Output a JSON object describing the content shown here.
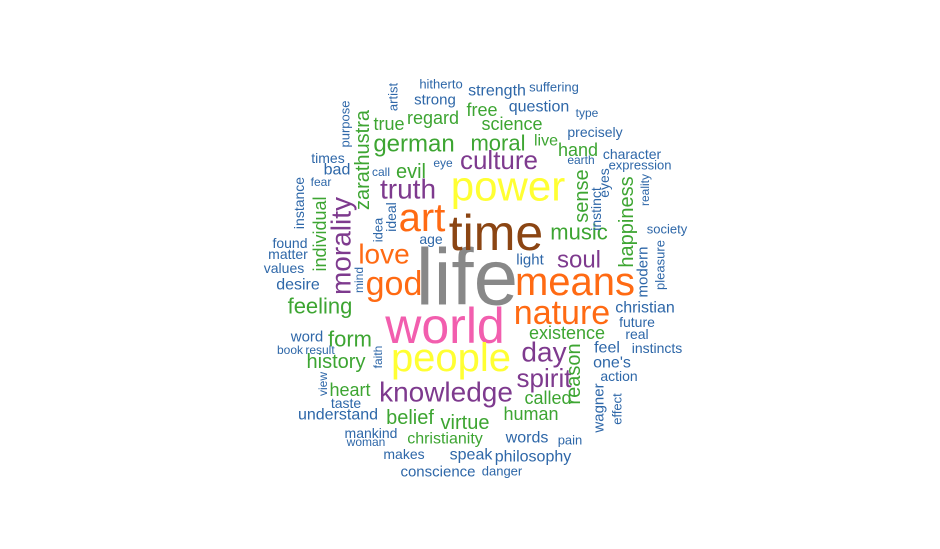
{
  "colors": {
    "gray": "#888888",
    "brown": "#8B4513",
    "yellow": "#FFFF33",
    "pink": "#F25EAE",
    "orange": "#FF6A13",
    "purple": "#7E3A8E",
    "green": "#3DA532",
    "blue": "#2E67A8"
  },
  "words": [
    {
      "text": "life",
      "color": "gray"
    },
    {
      "text": "time",
      "color": "brown"
    },
    {
      "text": "world",
      "color": "pink"
    },
    {
      "text": "power",
      "color": "yellow"
    },
    {
      "text": "people",
      "color": "yellow"
    },
    {
      "text": "means",
      "color": "orange"
    },
    {
      "text": "art",
      "color": "orange"
    },
    {
      "text": "nature",
      "color": "orange"
    },
    {
      "text": "god",
      "color": "orange"
    },
    {
      "text": "love",
      "color": "orange"
    },
    {
      "text": "knowledge",
      "color": "purple"
    },
    {
      "text": "morality",
      "color": "purple"
    },
    {
      "text": "truth",
      "color": "purple"
    },
    {
      "text": "culture",
      "color": "purple"
    },
    {
      "text": "spirit",
      "color": "purple"
    },
    {
      "text": "day",
      "color": "purple"
    },
    {
      "text": "soul",
      "color": "purple"
    },
    {
      "text": "music",
      "color": "green"
    },
    {
      "text": "german",
      "color": "green"
    },
    {
      "text": "moral",
      "color": "green"
    },
    {
      "text": "feeling",
      "color": "green"
    },
    {
      "text": "form",
      "color": "green"
    },
    {
      "text": "history",
      "color": "green"
    },
    {
      "text": "existence",
      "color": "green"
    },
    {
      "text": "zarathustra",
      "color": "green"
    },
    {
      "text": "sense",
      "color": "green"
    },
    {
      "text": "reason",
      "color": "green"
    },
    {
      "text": "happiness",
      "color": "green"
    },
    {
      "text": "evil",
      "color": "green"
    },
    {
      "text": "belief",
      "color": "green"
    },
    {
      "text": "virtue",
      "color": "green"
    },
    {
      "text": "human",
      "color": "green"
    },
    {
      "text": "called",
      "color": "green"
    },
    {
      "text": "heart",
      "color": "green"
    },
    {
      "text": "science",
      "color": "green"
    },
    {
      "text": "regard",
      "color": "green"
    },
    {
      "text": "true",
      "color": "green"
    },
    {
      "text": "free",
      "color": "green"
    },
    {
      "text": "hand",
      "color": "green"
    },
    {
      "text": "individual",
      "color": "green"
    },
    {
      "text": "christianity",
      "color": "green"
    },
    {
      "text": "live",
      "color": "green"
    },
    {
      "text": "strength",
      "color": "blue"
    },
    {
      "text": "strong",
      "color": "blue"
    },
    {
      "text": "question",
      "color": "blue"
    },
    {
      "text": "precisely",
      "color": "blue"
    },
    {
      "text": "suffering",
      "color": "blue"
    },
    {
      "text": "hitherto",
      "color": "blue"
    },
    {
      "text": "artist",
      "color": "blue"
    },
    {
      "text": "purpose",
      "color": "blue"
    },
    {
      "text": "type",
      "color": "blue"
    },
    {
      "text": "times",
      "color": "blue"
    },
    {
      "text": "bad",
      "color": "blue"
    },
    {
      "text": "call",
      "color": "blue"
    },
    {
      "text": "eye",
      "color": "blue"
    },
    {
      "text": "earth",
      "color": "blue"
    },
    {
      "text": "eyes",
      "color": "blue"
    },
    {
      "text": "instinct",
      "color": "blue"
    },
    {
      "text": "character",
      "color": "blue"
    },
    {
      "text": "expression",
      "color": "blue"
    },
    {
      "text": "reality",
      "color": "blue"
    },
    {
      "text": "fear",
      "color": "blue"
    },
    {
      "text": "instance",
      "color": "blue"
    },
    {
      "text": "ideal",
      "color": "blue"
    },
    {
      "text": "idea",
      "color": "blue"
    },
    {
      "text": "age",
      "color": "blue"
    },
    {
      "text": "found",
      "color": "blue"
    },
    {
      "text": "matter",
      "color": "blue"
    },
    {
      "text": "values",
      "color": "blue"
    },
    {
      "text": "mind",
      "color": "blue"
    },
    {
      "text": "desire",
      "color": "blue"
    },
    {
      "text": "light",
      "color": "blue"
    },
    {
      "text": "society",
      "color": "blue"
    },
    {
      "text": "modern",
      "color": "blue"
    },
    {
      "text": "pleasure",
      "color": "blue"
    },
    {
      "text": "christian",
      "color": "blue"
    },
    {
      "text": "future",
      "color": "blue"
    },
    {
      "text": "real",
      "color": "blue"
    },
    {
      "text": "feel",
      "color": "blue"
    },
    {
      "text": "instincts",
      "color": "blue"
    },
    {
      "text": "one's",
      "color": "blue"
    },
    {
      "text": "action",
      "color": "blue"
    },
    {
      "text": "word",
      "color": "blue"
    },
    {
      "text": "book",
      "color": "blue"
    },
    {
      "text": "result",
      "color": "blue"
    },
    {
      "text": "faith",
      "color": "blue"
    },
    {
      "text": "view",
      "color": "blue"
    },
    {
      "text": "taste",
      "color": "blue"
    },
    {
      "text": "understand",
      "color": "blue"
    },
    {
      "text": "mankind",
      "color": "blue"
    },
    {
      "text": "woman",
      "color": "blue"
    },
    {
      "text": "makes",
      "color": "blue"
    },
    {
      "text": "words",
      "color": "blue"
    },
    {
      "text": "pain",
      "color": "blue"
    },
    {
      "text": "speak",
      "color": "blue"
    },
    {
      "text": "philosophy",
      "color": "blue"
    },
    {
      "text": "conscience",
      "color": "blue"
    },
    {
      "text": "danger",
      "color": "blue"
    },
    {
      "text": "wagner",
      "color": "blue"
    },
    {
      "text": "effect",
      "color": "blue"
    }
  ]
}
